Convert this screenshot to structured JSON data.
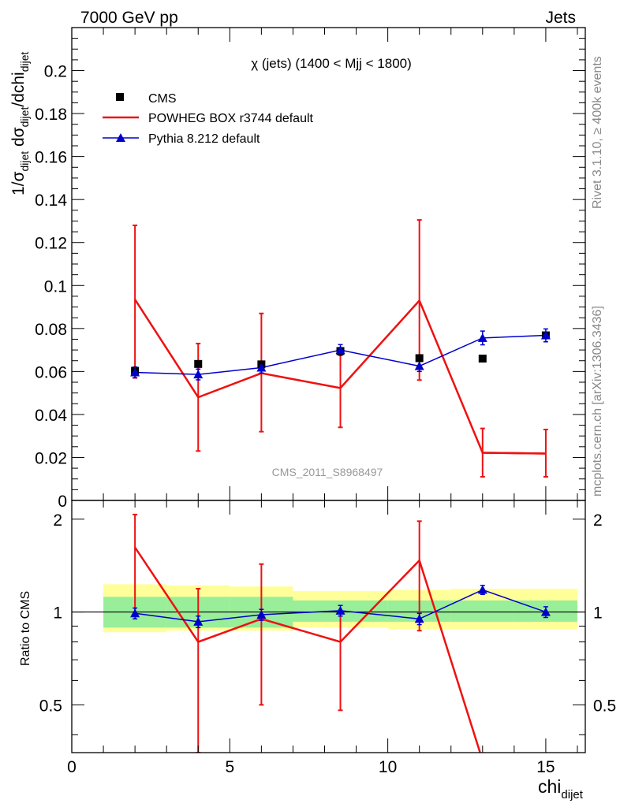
{
  "header": {
    "left": "7000 GeV pp",
    "right": "Jets"
  },
  "side_labels": {
    "rivet": "Rivet 3.1.10, ≥ 400k events",
    "mcplots": "mcplots.cern.ch [arXiv:1306.3436]"
  },
  "watermark": "CMS_2011_S8968497",
  "chart_data": {
    "type": "scatter",
    "title": "χ (jets) (1400 < Mjj < 1800)",
    "xlabel": {
      "main": "chi",
      "sub": "dijet"
    },
    "ylabel": {
      "pre": "1/σ",
      "sub1": "dijet",
      "mid": " dσ",
      "sub2": "dijet",
      "post": "/dchi",
      "sub3": "dijet"
    },
    "ratio_ylabel": "Ratio to CMS",
    "xlim": [
      0,
      16.25
    ],
    "ylim": [
      0,
      0.22
    ],
    "ratio_ylim": [
      0.35,
      2.3
    ],
    "x_ticks": [
      0,
      5,
      10,
      15
    ],
    "x_tick_labels": [
      "0",
      "5",
      "10",
      "15"
    ],
    "y_ticks": [
      0,
      0.02,
      0.04,
      0.06,
      0.08,
      0.1,
      0.12,
      0.14,
      0.16,
      0.18,
      0.2
    ],
    "y_tick_labels": [
      "0",
      "0.02",
      "0.04",
      "0.06",
      "0.08",
      "0.1",
      "0.12",
      "0.14",
      "0.16",
      "0.18",
      "0.2"
    ],
    "ratio_ticks": [
      0.5,
      1,
      2
    ],
    "ratio_tick_labels": [
      "0.5",
      "1",
      "2"
    ],
    "legend": [
      {
        "label": "CMS",
        "style": "square",
        "color": "#000000"
      },
      {
        "label": "POWHEG BOX r3744 default",
        "style": "line",
        "color": "#ee1111"
      },
      {
        "label": "Pythia 8.212 default",
        "style": "triangle-line",
        "color": "#0000cc"
      }
    ],
    "series": [
      {
        "name": "CMS",
        "color": "#000000",
        "x": [
          2,
          4,
          6,
          8.5,
          11,
          13,
          15
        ],
        "y": [
          0.0603,
          0.0635,
          0.0633,
          0.0695,
          0.0662,
          0.066,
          0.0768
        ],
        "err": [
          0.0012,
          0.0012,
          0.0012,
          0.0012,
          0.0012,
          0.0012,
          0.0012
        ]
      },
      {
        "name": "POWHEG BOX r3744 default",
        "color": "#ee1111",
        "x": [
          2,
          4,
          6,
          8.5,
          11,
          13,
          15
        ],
        "y": [
          0.0935,
          0.048,
          0.0592,
          0.0523,
          0.093,
          0.0222,
          0.0218
        ],
        "ylo": [
          0.057,
          0.023,
          0.032,
          0.034,
          0.056,
          0.011,
          0.011
        ],
        "yhi": [
          0.128,
          0.073,
          0.087,
          0.071,
          0.1305,
          0.0335,
          0.033
        ]
      },
      {
        "name": "Pythia 8.212 default",
        "color": "#0000cc",
        "x": [
          2,
          4,
          6,
          8.5,
          11,
          13,
          15
        ],
        "y": [
          0.0596,
          0.0586,
          0.0618,
          0.07,
          0.0625,
          0.0756,
          0.0768
        ],
        "err": [
          0.0025,
          0.0025,
          0.0025,
          0.0025,
          0.0025,
          0.0032,
          0.003
        ]
      }
    ],
    "ratio": {
      "bands": [
        {
          "x0": 1,
          "x1": 3,
          "inner": [
            0.89,
            1.12
          ],
          "outer": [
            0.86,
            1.23
          ]
        },
        {
          "x0": 3,
          "x1": 5,
          "inner": [
            0.89,
            1.12
          ],
          "outer": [
            0.87,
            1.22
          ]
        },
        {
          "x0": 5,
          "x1": 7,
          "inner": [
            0.89,
            1.12
          ],
          "outer": [
            0.87,
            1.21
          ]
        },
        {
          "x0": 7,
          "x1": 10,
          "inner": [
            0.93,
            1.09
          ],
          "outer": [
            0.89,
            1.17
          ]
        },
        {
          "x0": 10,
          "x1": 12,
          "inner": [
            0.93,
            1.09
          ],
          "outer": [
            0.88,
            1.18
          ]
        },
        {
          "x0": 12,
          "x1": 14,
          "inner": [
            0.93,
            1.09
          ],
          "outer": [
            0.88,
            1.19
          ]
        },
        {
          "x0": 14,
          "x1": 16,
          "inner": [
            0.93,
            1.09
          ],
          "outer": [
            0.88,
            1.19
          ]
        }
      ],
      "powheg": {
        "x": [
          2,
          4,
          6,
          8.5,
          11,
          13
        ],
        "y": [
          1.62,
          0.8,
          0.95,
          0.8,
          1.47,
          0.33
        ],
        "ylo": [
          0.99,
          0.33,
          0.5,
          0.48,
          0.87,
          0.33
        ],
        "yhi": [
          2.07,
          1.19,
          1.43,
          1.0,
          1.97,
          0.33
        ]
      },
      "pythia": {
        "x": [
          2,
          4,
          6,
          8.5,
          11,
          13,
          15
        ],
        "y": [
          0.99,
          0.93,
          0.98,
          1.01,
          0.95,
          1.18,
          1.0
        ],
        "err": [
          0.04,
          0.04,
          0.04,
          0.04,
          0.04,
          0.04,
          0.04
        ]
      }
    }
  }
}
